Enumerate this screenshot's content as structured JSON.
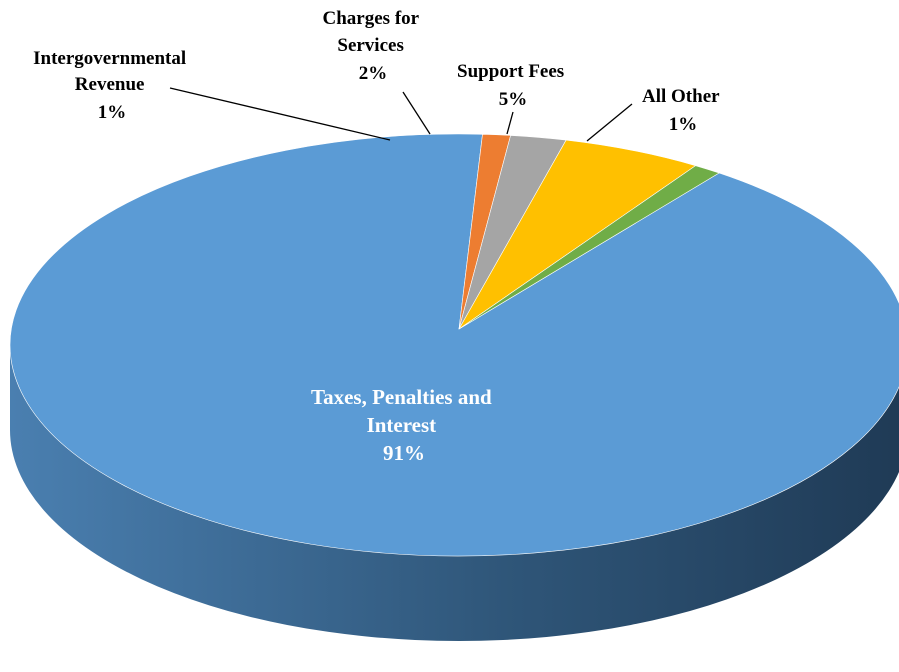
{
  "chart_data": {
    "type": "pie",
    "style": "3d",
    "unit": "%",
    "slices": [
      {
        "name_lines": [
          "Taxes, Penalties and",
          "Interest"
        ],
        "value": 91,
        "label": "91%",
        "color": "#5b9bd5"
      },
      {
        "name_lines": [
          "Intergovernmental",
          "Revenue"
        ],
        "value": 1,
        "label": "1%",
        "color": "#ed7d31"
      },
      {
        "name_lines": [
          "Charges for",
          "Services"
        ],
        "value": 2,
        "label": "2%",
        "color": "#a5a5a5"
      },
      {
        "name_lines": [
          "Support Fees"
        ],
        "value": 5,
        "label": "5%",
        "color": "#ffc000"
      },
      {
        "name_lines": [
          "All Other"
        ],
        "value": 1,
        "label": "1%",
        "color": "#70ad47"
      }
    ]
  }
}
